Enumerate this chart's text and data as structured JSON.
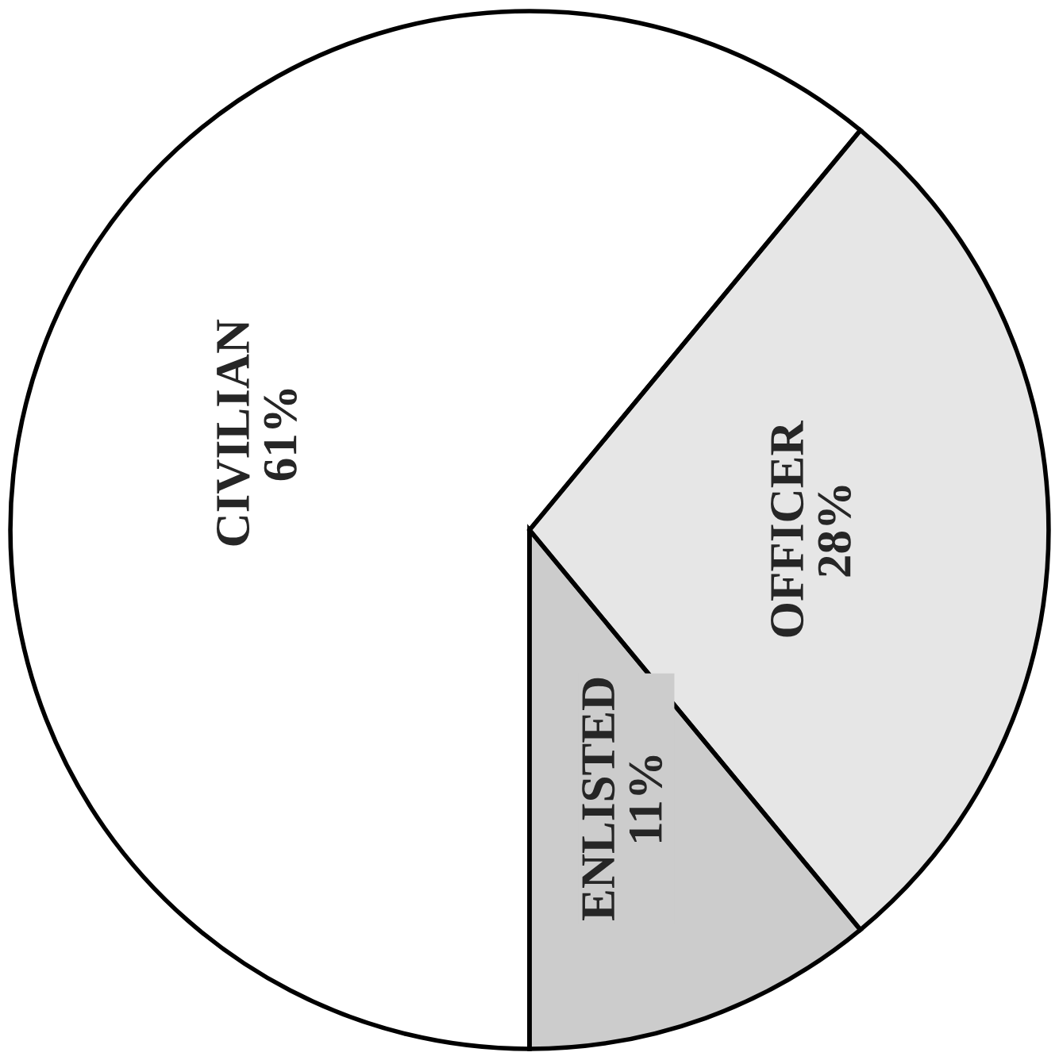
{
  "chart_data": {
    "type": "pie",
    "categories": [
      "CIVILIAN",
      "OFFICER",
      "ENLISTED"
    ],
    "values": [
      61,
      28,
      11
    ],
    "value_labels": [
      "61%",
      "28%",
      "11%"
    ],
    "colors": [
      "#ffffff",
      "#e6e6e6",
      "#cccccc"
    ]
  }
}
